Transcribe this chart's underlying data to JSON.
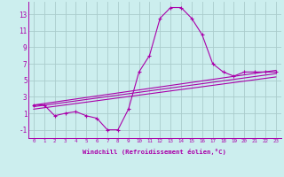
{
  "x": [
    0,
    1,
    2,
    3,
    4,
    5,
    6,
    7,
    8,
    9,
    10,
    11,
    12,
    13,
    14,
    15,
    16,
    17,
    18,
    19,
    20,
    21,
    22,
    23
  ],
  "main_line": [
    2.0,
    2.0,
    0.7,
    1.0,
    1.2,
    0.7,
    0.4,
    -1.0,
    -1.0,
    1.5,
    6.0,
    8.0,
    12.5,
    13.8,
    13.8,
    12.5,
    10.5,
    7.0,
    6.0,
    5.5,
    6.0,
    6.0,
    6.0,
    6.0
  ],
  "line2_x": [
    0,
    23
  ],
  "line2_y": [
    2.0,
    6.2
  ],
  "line3_x": [
    0,
    23
  ],
  "line3_y": [
    1.8,
    5.8
  ],
  "line4_x": [
    0,
    23
  ],
  "line4_y": [
    1.5,
    5.4
  ],
  "color": "#AA00AA",
  "bg_color": "#CCEEEE",
  "grid_color": "#AACCCC",
  "xlabel": "Windchill (Refroidissement éolien,°C)",
  "ylabel_ticks": [
    -1,
    1,
    3,
    5,
    7,
    9,
    11,
    13
  ],
  "xtick_labels": [
    "0",
    "1",
    "2",
    "3",
    "4",
    "5",
    "6",
    "7",
    "8",
    "9",
    "10",
    "11",
    "12",
    "13",
    "14",
    "15",
    "16",
    "17",
    "18",
    "19",
    "20",
    "21",
    "22",
    "23"
  ],
  "xlim": [
    -0.5,
    23.5
  ],
  "ylim": [
    -2.0,
    14.5
  ]
}
